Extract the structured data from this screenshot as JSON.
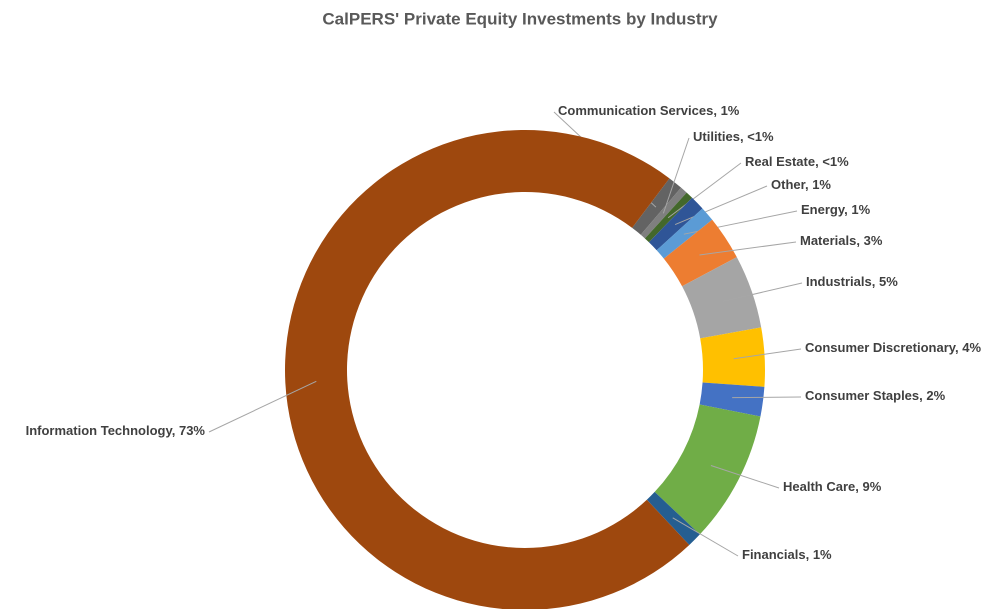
{
  "chart_data": {
    "type": "donut",
    "title": "CalPERS' Private Equity Investments by Industry",
    "categories": [
      "Communication Services",
      "Utilities",
      "Real Estate",
      "Other",
      "Energy",
      "Materials",
      "Industrials",
      "Consumer Discretionary",
      "Consumer Staples",
      "Health Care",
      "Financials",
      "Information Technology"
    ],
    "values": [
      1,
      0.5,
      0.5,
      1,
      1,
      3,
      5,
      4,
      2,
      9,
      1,
      73
    ],
    "value_labels": [
      "1%",
      "<1%",
      "<1%",
      "1%",
      "1%",
      "3%",
      "5%",
      "4%",
      "2%",
      "9%",
      "1%",
      "73%"
    ],
    "colors": [
      "#636363",
      "#7f7f7f",
      "#43682b",
      "#2f5597",
      "#5b9bd5",
      "#ed7d31",
      "#a5a5a5",
      "#ffc000",
      "#4472c4",
      "#70ad47",
      "#255e91",
      "#9e480e"
    ]
  }
}
